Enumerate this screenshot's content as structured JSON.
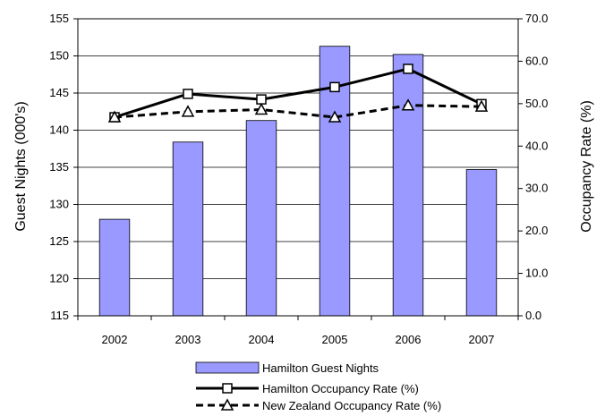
{
  "chart_data": {
    "type": "bar",
    "title": "",
    "categories": [
      "2002",
      "2003",
      "2004",
      "2005",
      "2006",
      "2007"
    ],
    "bar_series": {
      "name": "Hamilton Guest Nights",
      "axis": "left",
      "values": [
        128.0,
        138.4,
        141.3,
        151.3,
        150.2,
        134.7
      ]
    },
    "line_series": [
      {
        "name": "Hamilton Occupancy Rate (%)",
        "axis": "right",
        "values": [
          46.8,
          52.3,
          51.0,
          53.9,
          58.2,
          49.9
        ],
        "line_style": "solid",
        "marker": "square"
      },
      {
        "name": "New Zealand Occupancy Rate (%)",
        "axis": "right",
        "values": [
          46.8,
          48.1,
          48.6,
          46.8,
          49.6,
          49.3
        ],
        "line_style": "dashed",
        "marker": "triangle"
      }
    ],
    "ylabel_left": "Guest Nights  (000's)",
    "ylabel_right": "Occupancy Rate  (%)",
    "ylim_left": [
      115,
      155
    ],
    "yticks_left": [
      "115",
      "120",
      "125",
      "130",
      "135",
      "140",
      "145",
      "150",
      "155"
    ],
    "ylim_right": [
      0,
      70
    ],
    "yticks_right": [
      "0.0",
      "10.0",
      "20.0",
      "30.0",
      "40.0",
      "50.0",
      "60.0",
      "70.0"
    ],
    "grid": true,
    "legend_position": "bottom",
    "colors": {
      "bar_fill": "#9999ff",
      "bar_stroke": "#000000",
      "hamilton_line": "#000000",
      "nz_line": "#000000",
      "grid": "#000000"
    }
  }
}
